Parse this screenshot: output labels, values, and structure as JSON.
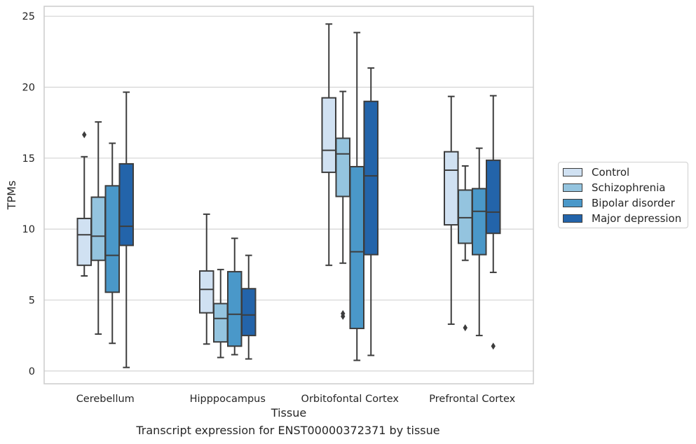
{
  "caption": "Transcript expression for ENST00000372371 by tissue",
  "chart_data": {
    "type": "box",
    "xlabel": "Tissue",
    "ylabel": "TPMs",
    "ylim": [
      -0.9,
      25.7
    ],
    "yticks": [
      0,
      5,
      10,
      15,
      20,
      25
    ],
    "grid": "horizontal",
    "legend_position": "outside-right",
    "categories": [
      "Cerebellum",
      "Hipppocampus",
      "Orbitofontal Cortex",
      "Prefrontal Cortex"
    ],
    "series": [
      {
        "name": "Control",
        "color": "#d0e1f2",
        "boxes": [
          {
            "whislo": 6.7,
            "q1": 7.45,
            "med": 9.6,
            "q3": 10.75,
            "whishi": 15.1,
            "fliers": [
              16.65
            ]
          },
          {
            "whislo": 1.9,
            "q1": 4.1,
            "med": 5.75,
            "q3": 7.05,
            "whishi": 11.05,
            "fliers": []
          },
          {
            "whislo": 7.45,
            "q1": 14.0,
            "med": 15.55,
            "q3": 19.25,
            "whishi": 24.45,
            "fliers": []
          },
          {
            "whislo": 3.3,
            "q1": 10.3,
            "med": 14.15,
            "q3": 15.45,
            "whishi": 19.35,
            "fliers": []
          }
        ]
      },
      {
        "name": "Schizophrenia",
        "color": "#94c4df",
        "boxes": [
          {
            "whislo": 2.6,
            "q1": 7.8,
            "med": 9.5,
            "q3": 12.25,
            "whishi": 17.55,
            "fliers": []
          },
          {
            "whislo": 0.95,
            "q1": 2.05,
            "med": 3.7,
            "q3": 4.75,
            "whishi": 7.15,
            "fliers": []
          },
          {
            "whislo": 7.6,
            "q1": 12.3,
            "med": 15.3,
            "q3": 16.4,
            "whishi": 19.7,
            "fliers": [
              3.85,
              4.05
            ]
          },
          {
            "whislo": 7.8,
            "q1": 9.0,
            "med": 10.8,
            "q3": 12.75,
            "whishi": 14.45,
            "fliers": [
              3.05
            ]
          }
        ]
      },
      {
        "name": "Bipolar disorder",
        "color": "#4a98c9",
        "boxes": [
          {
            "whislo": 1.95,
            "q1": 5.55,
            "med": 8.15,
            "q3": 13.05,
            "whishi": 16.05,
            "fliers": []
          },
          {
            "whislo": 1.15,
            "q1": 1.75,
            "med": 4.0,
            "q3": 7.0,
            "whishi": 9.35,
            "fliers": []
          },
          {
            "whislo": 0.75,
            "q1": 3.0,
            "med": 8.4,
            "q3": 14.4,
            "whishi": 23.85,
            "fliers": []
          },
          {
            "whislo": 2.5,
            "q1": 8.2,
            "med": 11.25,
            "q3": 12.85,
            "whishi": 15.7,
            "fliers": []
          }
        ]
      },
      {
        "name": "Major depression",
        "color": "#2364aa",
        "boxes": [
          {
            "whislo": 0.25,
            "q1": 8.85,
            "med": 10.2,
            "q3": 14.6,
            "whishi": 19.65,
            "fliers": []
          },
          {
            "whislo": 0.85,
            "q1": 2.5,
            "med": 3.95,
            "q3": 5.8,
            "whishi": 8.15,
            "fliers": []
          },
          {
            "whislo": 1.1,
            "q1": 8.2,
            "med": 13.75,
            "q3": 19.0,
            "whishi": 21.35,
            "fliers": []
          },
          {
            "whislo": 6.95,
            "q1": 9.7,
            "med": 11.2,
            "q3": 14.85,
            "whishi": 19.4,
            "fliers": [
              1.75
            ]
          }
        ]
      }
    ]
  }
}
